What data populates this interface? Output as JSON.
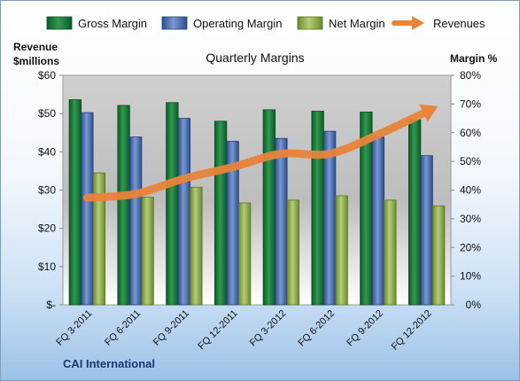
{
  "chart_data": {
    "type": "bar",
    "title": "Quarterly Margins",
    "y_left_label": [
      "Revenue",
      "$millions"
    ],
    "y_right_label": "Margin %",
    "footer": "CAI International",
    "categories": [
      "FQ 3-2011",
      "FQ 6-2011",
      "FQ 9-2011",
      "FQ 12-2011",
      "FQ 3-2012",
      "FQ 6-2012",
      "FQ 9-2012",
      "FQ 12-2012"
    ],
    "y_left_ticks": [
      "$-",
      "$10",
      "$20",
      "$30",
      "$40",
      "$50",
      "$60"
    ],
    "y_left_lim": [
      0,
      60
    ],
    "y_right_ticks": [
      "0%",
      "10%",
      "20%",
      "30%",
      "40%",
      "50%",
      "60%",
      "70%",
      "80%"
    ],
    "y_right_lim": [
      0,
      80
    ],
    "series": [
      {
        "name": "Gross Margin",
        "kind": "bar",
        "axis": "right",
        "color": "#1e7a3c",
        "values": [
          71.5,
          69.5,
          70.5,
          64,
          68,
          67.5,
          67.2,
          64.5
        ]
      },
      {
        "name": "Operating Margin",
        "kind": "bar",
        "axis": "right",
        "color": "#4a6fb5",
        "values": [
          67,
          58.5,
          65,
          57,
          58,
          60.5,
          58.5,
          52
        ]
      },
      {
        "name": "Net Margin",
        "kind": "bar",
        "axis": "right",
        "color": "#8fae4a",
        "values": [
          46,
          37.5,
          41,
          35.5,
          36.5,
          38,
          36.5,
          34.5
        ]
      },
      {
        "name": "Revenues",
        "kind": "line",
        "axis": "left",
        "color": "#e8843a",
        "values": [
          28,
          29,
          33,
          36,
          39.5,
          39.5,
          44.5,
          50.5
        ]
      }
    ],
    "grid": false,
    "legend_position": "top"
  }
}
